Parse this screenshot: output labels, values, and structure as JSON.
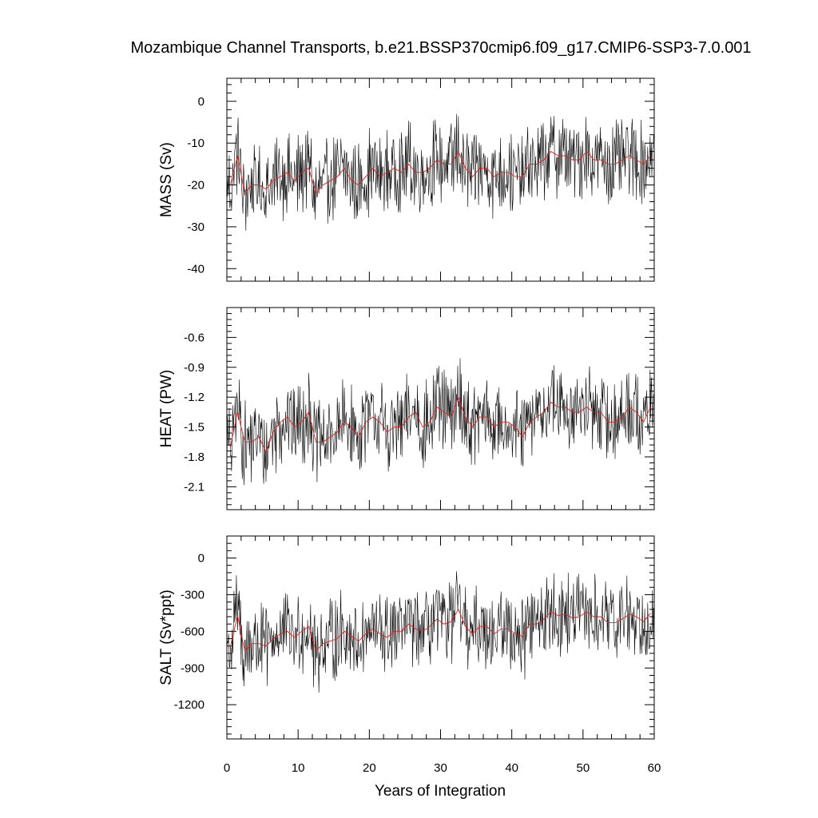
{
  "chart_data": {
    "title": "Mozambique Channel Transports, b.e21.BSSP370cmip6.f09_g17.CMIP6-SSP3-7.0.001",
    "xlabel": "Years of Integration",
    "xlim": [
      0,
      60
    ],
    "xticks": [
      0,
      10,
      20,
      30,
      40,
      50,
      60
    ],
    "xtick_labels": [
      "0",
      "10",
      "20",
      "30",
      "40",
      "50",
      "60"
    ],
    "series_colors": {
      "monthly": "#000000",
      "annual_mean": "#e0201b"
    },
    "panels": [
      {
        "type": "line",
        "ylabel": "MASS (Sv)",
        "ylim": [
          -43,
          5.5
        ],
        "yticks": [
          0,
          -10,
          -20,
          -30,
          -40
        ],
        "ytick_labels": [
          "0",
          "-10",
          "-20",
          "-30",
          "-40"
        ],
        "annual_mean": {
          "x": [
            0.5,
            1.5,
            2.5,
            3.5,
            4.5,
            5.5,
            6.5,
            7.5,
            8.5,
            9.5,
            10.5,
            11.5,
            12.5,
            13.5,
            14.5,
            15.5,
            16.5,
            17.5,
            18.5,
            19.5,
            20.5,
            21.5,
            22.5,
            23.5,
            24.5,
            25.5,
            26.5,
            27.5,
            28.5,
            29.5,
            30.5,
            31.5,
            32.5,
            33.5,
            34.5,
            35.5,
            36.5,
            37.5,
            38.5,
            39.5,
            40.5,
            41.5,
            42.5,
            43.5,
            44.5,
            45.5,
            46.5,
            47.5,
            48.5,
            49.5,
            50.5,
            51.5,
            52.5,
            53.5,
            54.5,
            55.5,
            56.5,
            57.5,
            58.5,
            59.5
          ],
          "y": [
            -20,
            -13,
            -22,
            -20,
            -20,
            -21,
            -19,
            -18,
            -17,
            -19,
            -17,
            -16,
            -22,
            -20,
            -19,
            -18,
            -16,
            -19,
            -20,
            -18,
            -16,
            -18,
            -17,
            -16,
            -17,
            -15,
            -17,
            -17,
            -16,
            -14,
            -15,
            -15,
            -12,
            -16,
            -18,
            -16,
            -16,
            -18,
            -17,
            -17,
            -18,
            -18,
            -15,
            -15,
            -14,
            -12,
            -13,
            -13,
            -14,
            -14,
            -12,
            -14,
            -14,
            -15,
            -15,
            -14,
            -13,
            -14,
            -15,
            -13
          ]
        }
      },
      {
        "type": "line",
        "ylabel": "HEAT (PW)",
        "ylim": [
          -2.33,
          -0.3
        ],
        "yticks": [
          -0.6,
          -0.9,
          -1.2,
          -1.5,
          -1.8,
          -2.1
        ],
        "ytick_labels": [
          "-0.6",
          "-0.9",
          "-1.2",
          "-1.5",
          "-1.8",
          "-2.1"
        ],
        "annual_mean": {
          "x": [
            0.5,
            1.5,
            2.5,
            3.5,
            4.5,
            5.5,
            6.5,
            7.5,
            8.5,
            9.5,
            10.5,
            11.5,
            12.5,
            13.5,
            14.5,
            15.5,
            16.5,
            17.5,
            18.5,
            19.5,
            20.5,
            21.5,
            22.5,
            23.5,
            24.5,
            25.5,
            26.5,
            27.5,
            28.5,
            29.5,
            30.5,
            31.5,
            32.5,
            33.5,
            34.5,
            35.5,
            36.5,
            37.5,
            38.5,
            39.5,
            40.5,
            41.5,
            42.5,
            43.5,
            44.5,
            45.5,
            46.5,
            47.5,
            48.5,
            49.5,
            50.5,
            51.5,
            52.5,
            53.5,
            54.5,
            55.5,
            56.5,
            57.5,
            58.5,
            59.5
          ],
          "y": [
            -1.7,
            -1.35,
            -1.65,
            -1.65,
            -1.6,
            -1.75,
            -1.55,
            -1.45,
            -1.4,
            -1.5,
            -1.45,
            -1.35,
            -1.65,
            -1.65,
            -1.6,
            -1.55,
            -1.45,
            -1.5,
            -1.6,
            -1.45,
            -1.4,
            -1.45,
            -1.55,
            -1.5,
            -1.5,
            -1.4,
            -1.35,
            -1.5,
            -1.45,
            -1.3,
            -1.35,
            -1.4,
            -1.2,
            -1.4,
            -1.5,
            -1.4,
            -1.4,
            -1.5,
            -1.45,
            -1.45,
            -1.5,
            -1.6,
            -1.45,
            -1.4,
            -1.35,
            -1.25,
            -1.3,
            -1.3,
            -1.35,
            -1.35,
            -1.3,
            -1.35,
            -1.35,
            -1.45,
            -1.45,
            -1.4,
            -1.3,
            -1.35,
            -1.45,
            -1.3
          ]
        }
      },
      {
        "type": "line",
        "ylabel": "SALT (Sv*ppt)",
        "ylim": [
          -1480,
          180
        ],
        "yticks": [
          0,
          -300,
          -600,
          -900,
          -1200
        ],
        "ytick_labels": [
          "0",
          "-300",
          "-600",
          "-900",
          "-1200"
        ],
        "annual_mean": {
          "x": [
            0.5,
            1.5,
            2.5,
            3.5,
            4.5,
            5.5,
            6.5,
            7.5,
            8.5,
            9.5,
            10.5,
            11.5,
            12.5,
            13.5,
            14.5,
            15.5,
            16.5,
            17.5,
            18.5,
            19.5,
            20.5,
            21.5,
            22.5,
            23.5,
            24.5,
            25.5,
            26.5,
            27.5,
            28.5,
            29.5,
            30.5,
            31.5,
            32.5,
            33.5,
            34.5,
            35.5,
            36.5,
            37.5,
            38.5,
            39.5,
            40.5,
            41.5,
            42.5,
            43.5,
            44.5,
            45.5,
            46.5,
            47.5,
            48.5,
            49.5,
            50.5,
            51.5,
            52.5,
            53.5,
            54.5,
            55.5,
            56.5,
            57.5,
            58.5,
            59.5
          ],
          "y": [
            -720,
            -470,
            -760,
            -700,
            -700,
            -720,
            -660,
            -620,
            -600,
            -650,
            -600,
            -560,
            -760,
            -700,
            -680,
            -660,
            -600,
            -640,
            -680,
            -620,
            -580,
            -620,
            -650,
            -600,
            -600,
            -540,
            -580,
            -600,
            -560,
            -500,
            -540,
            -520,
            -420,
            -560,
            -620,
            -560,
            -560,
            -620,
            -580,
            -580,
            -620,
            -640,
            -540,
            -540,
            -500,
            -440,
            -470,
            -460,
            -490,
            -480,
            -440,
            -480,
            -480,
            -530,
            -530,
            -500,
            -460,
            -480,
            -520,
            -450
          ]
        }
      }
    ]
  }
}
